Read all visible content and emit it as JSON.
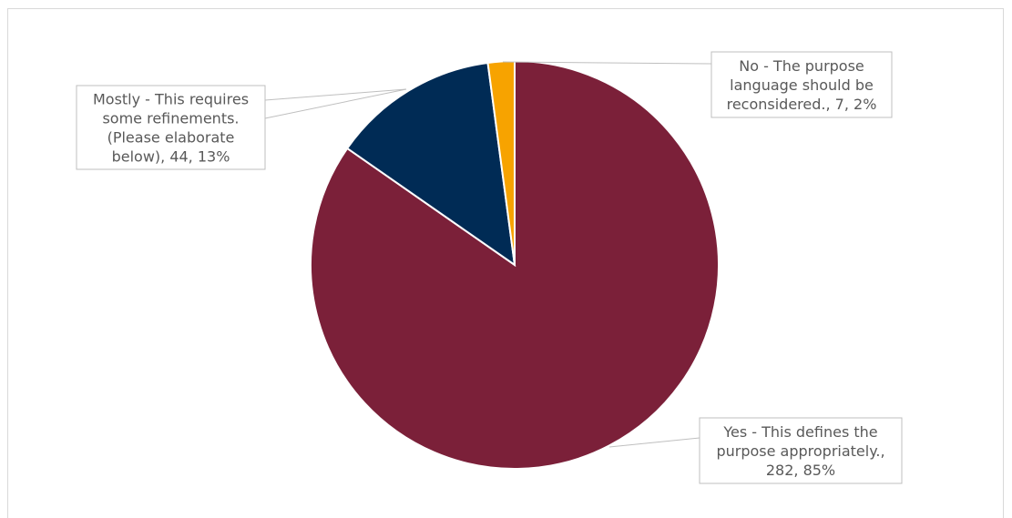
{
  "chart_data": {
    "type": "pie",
    "title": "",
    "slices": [
      {
        "label_lines": [
          "Yes - This defines the",
          "purpose appropriately.,",
          "282, 85%"
        ],
        "category": "Yes - This defines the purpose appropriately.",
        "value": 282,
        "percent": "85%",
        "color": "#7b2039"
      },
      {
        "label_lines": [
          "Mostly - This requires",
          "some refinements.",
          "(Please elaborate",
          "below), 44, 13%"
        ],
        "category": "Mostly - This requires some refinements. (Please elaborate below)",
        "value": 44,
        "percent": "13%",
        "color": "#002b55"
      },
      {
        "label_lines": [
          "No - The purpose",
          "language should be",
          "reconsidered., 7, 2%"
        ],
        "category": "No - The purpose language should be reconsidered.",
        "value": 7,
        "percent": "2%",
        "color": "#f7a300"
      }
    ]
  }
}
